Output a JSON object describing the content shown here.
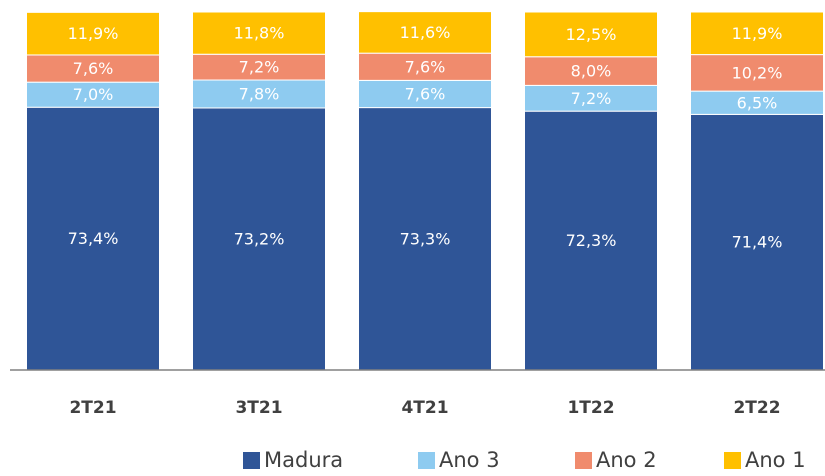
{
  "chart_data": {
    "type": "stacked_bar",
    "categories": [
      "2T21",
      "3T21",
      "4T21",
      "1T22",
      "2T22"
    ],
    "ylim": [
      0,
      100
    ],
    "series": [
      {
        "name": "Madura",
        "color": "#2f5597",
        "values": [
          73.4,
          73.2,
          73.3,
          72.3,
          71.4
        ],
        "value_labels": [
          "73,4%",
          "73,2%",
          "73,3%",
          "72,3%",
          "71,4%"
        ]
      },
      {
        "name": "Ano 3",
        "color": "#8ecbf0",
        "values": [
          7.0,
          7.8,
          7.6,
          7.2,
          6.5
        ],
        "value_labels": [
          "7,0%",
          "7,8%",
          "7,6%",
          "7,2%",
          "6,5%"
        ]
      },
      {
        "name": "Ano 2",
        "color": "#f08b6d",
        "values": [
          7.6,
          7.2,
          7.6,
          8.0,
          10.2
        ],
        "value_labels": [
          "7,6%",
          "7,2%",
          "7,6%",
          "8,0%",
          "10,2%"
        ]
      },
      {
        "name": "Ano 1",
        "color": "#ffc000",
        "values": [
          11.9,
          11.8,
          11.6,
          12.5,
          11.9
        ],
        "value_labels": [
          "11,9%",
          "11,8%",
          "11,6%",
          "12,5%",
          "11,9%"
        ]
      }
    ],
    "legend": "bottom"
  }
}
